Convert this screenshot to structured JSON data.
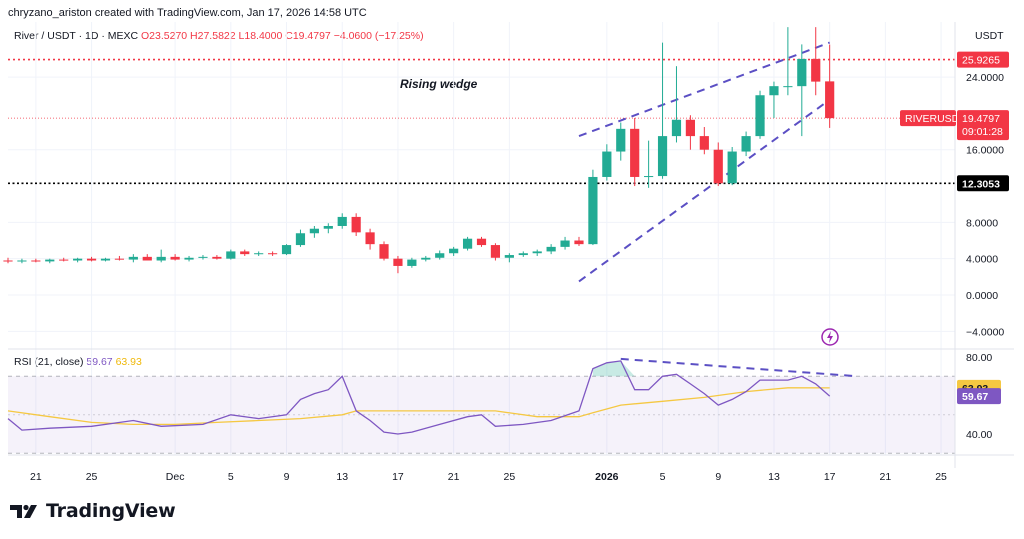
{
  "header": {
    "text": "chryzano_ariston created with TradingView.com, Jan 17, 2026 14:58 UTC"
  },
  "legend": {
    "symbol": "River / USDT · 1D · MEXC",
    "open": "O23.5270",
    "high": "H27.5822",
    "low": "L18.4000",
    "close": "C19.4797",
    "change": "−4.0600 (−17.25%)"
  },
  "rsi_legend": {
    "name": "RSI (21, close)",
    "rsi_value": "59.67",
    "ma_value": "63.93"
  },
  "unit": "USDT",
  "annotation": "Rising wedge",
  "branding": {
    "name": "TradingView"
  },
  "price_axis": {
    "ticks": [
      "24.0000",
      "16.0000",
      "8.0000",
      "4.0000",
      "0.0000",
      "−4.0000"
    ],
    "labels": {
      "high_line": "25.9265",
      "symbol_tag": "RIVERUSDT",
      "last_price": "19.4797",
      "countdown": "09:01:28",
      "support": "12.3053"
    }
  },
  "rsi_axis": {
    "ticks": [
      "80.00",
      "40.00"
    ],
    "labels": {
      "ma": "63.93",
      "rsi": "59.67"
    }
  },
  "time_axis": {
    "ticks": [
      "21",
      "25",
      "Dec",
      "5",
      "9",
      "13",
      "17",
      "21",
      "25",
      "2026",
      "5",
      "9",
      "13",
      "17",
      "21",
      "25"
    ]
  },
  "colors": {
    "up": "#22ab94",
    "down": "#f23645",
    "rsi": "#7e57c2",
    "rsi_ma": "#f5c842",
    "wedge": "#5b4fc4",
    "support": "#000000",
    "high_line": "#f23645"
  },
  "chart_data": [
    {
      "type": "candlestick",
      "title": "River / USDT · 1D · MEXC",
      "ylabel": "USDT",
      "ylim": [
        -5,
        30
      ],
      "x_range": [
        "2025-11-19",
        "2026-01-26"
      ],
      "series": [
        {
          "ohlc": [
            {
              "d": "2025-11-19",
              "o": 3.8,
              "h": 4.1,
              "l": 3.5,
              "c": 3.7
            },
            {
              "d": "2025-11-20",
              "o": 3.7,
              "h": 4.0,
              "l": 3.5,
              "c": 3.8
            },
            {
              "d": "2025-11-21",
              "o": 3.8,
              "h": 4.0,
              "l": 3.6,
              "c": 3.7
            },
            {
              "d": "2025-11-22",
              "o": 3.7,
              "h": 4.0,
              "l": 3.5,
              "c": 3.9
            },
            {
              "d": "2025-11-23",
              "o": 3.9,
              "h": 4.1,
              "l": 3.7,
              "c": 3.8
            },
            {
              "d": "2025-11-24",
              "o": 3.8,
              "h": 4.1,
              "l": 3.6,
              "c": 4.0
            },
            {
              "d": "2025-11-25",
              "o": 4.0,
              "h": 4.2,
              "l": 3.7,
              "c": 3.8
            },
            {
              "d": "2025-11-26",
              "o": 3.8,
              "h": 4.1,
              "l": 3.7,
              "c": 4.0
            },
            {
              "d": "2025-11-27",
              "o": 4.0,
              "h": 4.3,
              "l": 3.8,
              "c": 3.9
            },
            {
              "d": "2025-11-28",
              "o": 3.9,
              "h": 4.5,
              "l": 3.6,
              "c": 4.2
            },
            {
              "d": "2025-11-29",
              "o": 4.2,
              "h": 4.5,
              "l": 3.9,
              "c": 3.8
            },
            {
              "d": "2025-11-30",
              "o": 3.8,
              "h": 5.0,
              "l": 3.6,
              "c": 4.2
            },
            {
              "d": "2025-12-01",
              "o": 4.2,
              "h": 4.5,
              "l": 3.8,
              "c": 3.9
            },
            {
              "d": "2025-12-02",
              "o": 3.9,
              "h": 4.3,
              "l": 3.7,
              "c": 4.1
            },
            {
              "d": "2025-12-03",
              "o": 4.1,
              "h": 4.4,
              "l": 3.9,
              "c": 4.2
            },
            {
              "d": "2025-12-04",
              "o": 4.2,
              "h": 4.4,
              "l": 3.9,
              "c": 4.0
            },
            {
              "d": "2025-12-05",
              "o": 4.0,
              "h": 5.0,
              "l": 3.9,
              "c": 4.8
            },
            {
              "d": "2025-12-06",
              "o": 4.8,
              "h": 5.0,
              "l": 4.3,
              "c": 4.5
            },
            {
              "d": "2025-12-07",
              "o": 4.5,
              "h": 4.8,
              "l": 4.3,
              "c": 4.6
            },
            {
              "d": "2025-12-08",
              "o": 4.6,
              "h": 4.8,
              "l": 4.3,
              "c": 4.5
            },
            {
              "d": "2025-12-09",
              "o": 4.5,
              "h": 5.6,
              "l": 4.4,
              "c": 5.5
            },
            {
              "d": "2025-12-10",
              "o": 5.5,
              "h": 7.2,
              "l": 5.3,
              "c": 6.8
            },
            {
              "d": "2025-12-11",
              "o": 6.8,
              "h": 7.6,
              "l": 6.3,
              "c": 7.3
            },
            {
              "d": "2025-12-12",
              "o": 7.3,
              "h": 7.9,
              "l": 6.8,
              "c": 7.6
            },
            {
              "d": "2025-12-13",
              "o": 7.6,
              "h": 9.0,
              "l": 7.3,
              "c": 8.6
            },
            {
              "d": "2025-12-14",
              "o": 8.6,
              "h": 9.0,
              "l": 6.5,
              "c": 6.9
            },
            {
              "d": "2025-12-15",
              "o": 6.9,
              "h": 7.3,
              "l": 5.0,
              "c": 5.6
            },
            {
              "d": "2025-12-16",
              "o": 5.6,
              "h": 5.9,
              "l": 3.8,
              "c": 4.0
            },
            {
              "d": "2025-12-17",
              "o": 4.0,
              "h": 4.3,
              "l": 2.4,
              "c": 3.2
            },
            {
              "d": "2025-12-18",
              "o": 3.2,
              "h": 4.1,
              "l": 3.0,
              "c": 3.9
            },
            {
              "d": "2025-12-19",
              "o": 3.9,
              "h": 4.3,
              "l": 3.7,
              "c": 4.1
            },
            {
              "d": "2025-12-20",
              "o": 4.1,
              "h": 4.9,
              "l": 3.9,
              "c": 4.6
            },
            {
              "d": "2025-12-21",
              "o": 4.6,
              "h": 5.3,
              "l": 4.3,
              "c": 5.1
            },
            {
              "d": "2025-12-22",
              "o": 5.1,
              "h": 6.4,
              "l": 4.9,
              "c": 6.2
            },
            {
              "d": "2025-12-23",
              "o": 6.2,
              "h": 6.4,
              "l": 5.3,
              "c": 5.5
            },
            {
              "d": "2025-12-24",
              "o": 5.5,
              "h": 5.7,
              "l": 3.8,
              "c": 4.1
            },
            {
              "d": "2025-12-25",
              "o": 4.1,
              "h": 4.6,
              "l": 3.6,
              "c": 4.4
            },
            {
              "d": "2025-12-26",
              "o": 4.4,
              "h": 4.8,
              "l": 4.2,
              "c": 4.6
            },
            {
              "d": "2025-12-27",
              "o": 4.6,
              "h": 5.0,
              "l": 4.3,
              "c": 4.8
            },
            {
              "d": "2025-12-28",
              "o": 4.8,
              "h": 5.6,
              "l": 4.5,
              "c": 5.3
            },
            {
              "d": "2025-12-29",
              "o": 5.3,
              "h": 6.4,
              "l": 5.0,
              "c": 6.0
            },
            {
              "d": "2025-12-30",
              "o": 6.0,
              "h": 6.4,
              "l": 5.4,
              "c": 5.6
            },
            {
              "d": "2025-12-31",
              "o": 5.6,
              "h": 13.8,
              "l": 5.5,
              "c": 13.0
            },
            {
              "d": "2026-01-01",
              "o": 13.0,
              "h": 16.6,
              "l": 12.6,
              "c": 15.8
            },
            {
              "d": "2026-01-02",
              "o": 15.8,
              "h": 19.0,
              "l": 14.8,
              "c": 18.3
            },
            {
              "d": "2026-01-03",
              "o": 18.3,
              "h": 19.5,
              "l": 12.0,
              "c": 13.0
            },
            {
              "d": "2026-01-04",
              "o": 13.0,
              "h": 17.0,
              "l": 11.8,
              "c": 13.1
            },
            {
              "d": "2026-01-05",
              "o": 13.1,
              "h": 27.8,
              "l": 12.8,
              "c": 17.5
            },
            {
              "d": "2026-01-06",
              "o": 17.5,
              "h": 25.2,
              "l": 16.8,
              "c": 19.3
            },
            {
              "d": "2026-01-07",
              "o": 19.3,
              "h": 19.8,
              "l": 16.0,
              "c": 17.5
            },
            {
              "d": "2026-01-08",
              "o": 17.5,
              "h": 18.5,
              "l": 15.5,
              "c": 16.0
            },
            {
              "d": "2026-01-09",
              "o": 16.0,
              "h": 16.8,
              "l": 12.0,
              "c": 12.3
            },
            {
              "d": "2026-01-10",
              "o": 12.3,
              "h": 16.3,
              "l": 12.1,
              "c": 15.8
            },
            {
              "d": "2026-01-11",
              "o": 15.8,
              "h": 18.0,
              "l": 15.3,
              "c": 17.5
            },
            {
              "d": "2026-01-12",
              "o": 17.5,
              "h": 22.5,
              "l": 17.2,
              "c": 22.0
            },
            {
              "d": "2026-01-13",
              "o": 22.0,
              "h": 23.5,
              "l": 19.5,
              "c": 23.0
            },
            {
              "d": "2026-01-14",
              "o": 23.0,
              "h": 29.5,
              "l": 22.0,
              "c": 23.0
            },
            {
              "d": "2026-01-15",
              "o": 23.0,
              "h": 27.6,
              "l": 17.5,
              "c": 26.0
            },
            {
              "d": "2026-01-16",
              "o": 26.0,
              "h": 29.5,
              "l": 22.0,
              "c": 23.5
            },
            {
              "d": "2026-01-17",
              "o": 23.527,
              "h": 27.5822,
              "l": 18.4,
              "c": 19.4797
            }
          ]
        }
      ],
      "lines": [
        {
          "name": "high",
          "value": 25.9265
        },
        {
          "name": "support",
          "value": 12.3053
        }
      ],
      "trendlines": [
        {
          "from": [
            "2025-12-30",
            1.5
          ],
          "to": [
            "2026-01-17",
            21.5
          ]
        },
        {
          "from": [
            "2025-12-30",
            17.5
          ],
          "to": [
            "2026-01-17",
            27.8
          ]
        }
      ],
      "grid": true
    },
    {
      "type": "line",
      "title": "RSI (21, close)",
      "ylim": [
        20,
        85
      ],
      "bands": [
        30,
        70
      ],
      "series": [
        {
          "name": "RSI",
          "points": [
            [
              "2025-11-19",
              48
            ],
            [
              "2025-11-20",
              42
            ],
            [
              "2025-11-22",
              43
            ],
            [
              "2025-11-25",
              44
            ],
            [
              "2025-11-28",
              47
            ],
            [
              "2025-11-30",
              44
            ],
            [
              "2025-12-03",
              45
            ],
            [
              "2025-12-05",
              50
            ],
            [
              "2025-12-07",
              48
            ],
            [
              "2025-12-09",
              50
            ],
            [
              "2025-12-10",
              58
            ],
            [
              "2025-12-11",
              61
            ],
            [
              "2025-12-12",
              63
            ],
            [
              "2025-12-13",
              70
            ],
            [
              "2025-12-14",
              52
            ],
            [
              "2025-12-15",
              47
            ],
            [
              "2025-12-16",
              41
            ],
            [
              "2025-12-17",
              40
            ],
            [
              "2025-12-18",
              41
            ],
            [
              "2025-12-20",
              45
            ],
            [
              "2025-12-22",
              49
            ],
            [
              "2025-12-23",
              50
            ],
            [
              "2025-12-24",
              44
            ],
            [
              "2025-12-26",
              45
            ],
            [
              "2025-12-28",
              47
            ],
            [
              "2025-12-30",
              52
            ],
            [
              "2025-12-31",
              74
            ],
            [
              "2026-01-01",
              77
            ],
            [
              "2026-01-02",
              78
            ],
            [
              "2026-01-03",
              63
            ],
            [
              "2026-01-04",
              63
            ],
            [
              "2026-01-05",
              70
            ],
            [
              "2026-01-06",
              71
            ],
            [
              "2026-01-07",
              66
            ],
            [
              "2026-01-08",
              61
            ],
            [
              "2026-01-09",
              55
            ],
            [
              "2026-01-10",
              58
            ],
            [
              "2026-01-11",
              62
            ],
            [
              "2026-01-12",
              68
            ],
            [
              "2026-01-13",
              68
            ],
            [
              "2026-01-14",
              68
            ],
            [
              "2026-01-15",
              70
            ],
            [
              "2026-01-16",
              66
            ],
            [
              "2026-01-17",
              59.67
            ]
          ]
        },
        {
          "name": "RSI MA",
          "points": [
            [
              "2025-11-19",
              52
            ],
            [
              "2025-11-22",
              49
            ],
            [
              "2025-11-25",
              46
            ],
            [
              "2025-11-28",
              45
            ],
            [
              "2025-12-01",
              45
            ],
            [
              "2025-12-04",
              46
            ],
            [
              "2025-12-07",
              47
            ],
            [
              "2025-12-10",
              48
            ],
            [
              "2025-12-13",
              50
            ],
            [
              "2025-12-14",
              52
            ],
            [
              "2025-12-17",
              52
            ],
            [
              "2025-12-20",
              52
            ],
            [
              "2025-12-24",
              52
            ],
            [
              "2025-12-27",
              49
            ],
            [
              "2025-12-30",
              49
            ],
            [
              "2025-12-31",
              51
            ],
            [
              "2026-01-02",
              55
            ],
            [
              "2026-01-05",
              57
            ],
            [
              "2026-01-08",
              59
            ],
            [
              "2026-01-11",
              62
            ],
            [
              "2026-01-14",
              64
            ],
            [
              "2026-01-17",
              63.93
            ]
          ]
        }
      ],
      "trendlines": [
        {
          "from": [
            "2026-01-02",
            79
          ],
          "to": [
            "2026-01-19",
            70
          ]
        }
      ]
    }
  ]
}
